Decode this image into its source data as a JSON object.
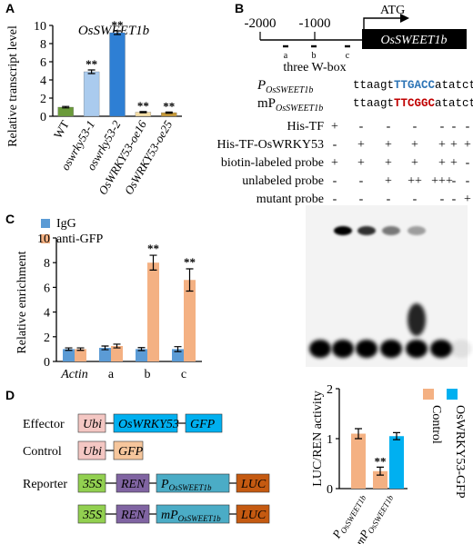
{
  "panels": {
    "a": "A",
    "b": "B",
    "c": "C",
    "d": "D"
  },
  "chart_data": [
    {
      "type": "bar",
      "title": "OsSWEET1b",
      "ylabel": "Relative transcript level",
      "ylim": [
        0,
        10
      ],
      "yticks": [
        "0",
        "2",
        "4",
        "6",
        "8",
        "10"
      ],
      "categories": [
        "WT",
        "oswrky53-1",
        "oswrky53-2",
        "OsWRKY53-oe16",
        "OsWRKY53-oe25"
      ],
      "values": [
        1.0,
        4.9,
        9.2,
        0.45,
        0.4
      ],
      "errors": [
        0.08,
        0.2,
        0.2,
        0.06,
        0.06
      ],
      "significance": [
        "",
        "**",
        "**",
        "**",
        "**"
      ],
      "colors": [
        "#6a9a3a",
        "#aacbee",
        "#2e7fd4",
        "#f5dea6",
        "#c79a3a"
      ]
    },
    {
      "type": "bar",
      "ylabel": "Relative enrichment",
      "ylim": [
        0,
        10
      ],
      "yticks": [
        "0",
        "2",
        "4",
        "6",
        "8",
        "10"
      ],
      "categories": [
        "Actin",
        "a",
        "b",
        "c"
      ],
      "series": [
        {
          "name": "IgG",
          "values": [
            1.0,
            1.1,
            1.0,
            1.0
          ],
          "errors": [
            0.1,
            0.15,
            0.12,
            0.2
          ],
          "color": "#5b9bd5",
          "significance": [
            "",
            "",
            "",
            ""
          ]
        },
        {
          "name": "anti-GFP",
          "values": [
            1.0,
            1.25,
            8.0,
            6.6
          ],
          "errors": [
            0.1,
            0.15,
            0.6,
            0.9
          ],
          "color": "#f4b183",
          "significance": [
            "",
            "",
            "**",
            "**"
          ]
        }
      ]
    },
    {
      "type": "bar",
      "ylabel": "LUC/REN activity",
      "ylim": [
        0,
        2
      ],
      "yticks": [
        "0",
        "1",
        "2"
      ],
      "categories": [
        "POsSWEET1b",
        "mPOsSWEET1b"
      ],
      "category_labels": [
        {
          "p": "P",
          "sub": "OsSWEET1b"
        },
        {
          "p": "mP",
          "sub": "OsSWEET1b"
        }
      ],
      "bars": [
        {
          "category": 0,
          "series": "Control",
          "value": 1.1,
          "error": 0.1,
          "color": "#f4b183",
          "sig": ""
        },
        {
          "category": 1,
          "series": "Control",
          "value": 0.35,
          "error": 0.08,
          "color": "#f4b183",
          "sig": "**"
        },
        {
          "category": 1,
          "series": "OsWRKY53-GFP",
          "value": 1.05,
          "error": 0.07,
          "color": "#00b0f0",
          "sig": ""
        }
      ],
      "legend": [
        {
          "name": "Control",
          "color": "#f4b183"
        },
        {
          "name": "OsWRKY53-GFP",
          "color": "#00b0f0"
        }
      ]
    }
  ],
  "promoter": {
    "pos1": "-2000",
    "pos2": "-1000",
    "atg": "ATG",
    "gene": "OsSWEET1b",
    "sites": [
      "a",
      "b",
      "c"
    ],
    "wbox_label": "three W-box",
    "seq_wt": {
      "p": "P",
      "sub": "OsSWEET1b",
      "pre": "ttaagt",
      "core": "TTGACC",
      "post": "atatcttg",
      "color": "#2e75b6"
    },
    "seq_mut": {
      "p": "mP",
      "sub": "OsSWEET1b",
      "pre": "ttaagt",
      "core": "TTCGGC",
      "post": "atatcttg",
      "color": "#c00000"
    }
  },
  "emsa": {
    "rows": [
      {
        "label": "His-TF",
        "cells": [
          "+",
          "-",
          "-",
          "-",
          "-",
          "-",
          "-"
        ]
      },
      {
        "label": "His-TF-OsWRKY53",
        "cells": [
          "-",
          "+",
          "+",
          "+",
          "+",
          "+",
          "+"
        ]
      },
      {
        "label": "biotin-labeled probe",
        "cells": [
          "+",
          "+",
          "+",
          "+",
          "+",
          "+",
          "-"
        ]
      },
      {
        "label": "unlabeled probe",
        "cells": [
          "-",
          "-",
          "+",
          "++",
          "+++",
          "-",
          "-"
        ]
      },
      {
        "label": "mutant probe",
        "cells": [
          "-",
          "-",
          "-",
          "-",
          "-",
          "-",
          "+"
        ]
      }
    ],
    "shift_band": [
      0,
      1,
      0.8,
      0.5,
      0.35,
      0,
      0
    ],
    "free_probe": [
      1,
      1,
      1,
      1,
      1,
      1,
      0.08
    ]
  },
  "constructs": {
    "effector_label": "Effector",
    "control_label": "Control",
    "reporter_label": "Reporter",
    "ubi": "Ubi",
    "wrky": "OsWRKY53",
    "gfp": "GFP",
    "s35": "35S",
    "ren": "REN",
    "luc": "LUC",
    "p_wt": {
      "p": "P",
      "sub": "OsSWEET1b"
    },
    "p_mut": {
      "p": "mP",
      "sub": "OsSWEET1b"
    }
  }
}
